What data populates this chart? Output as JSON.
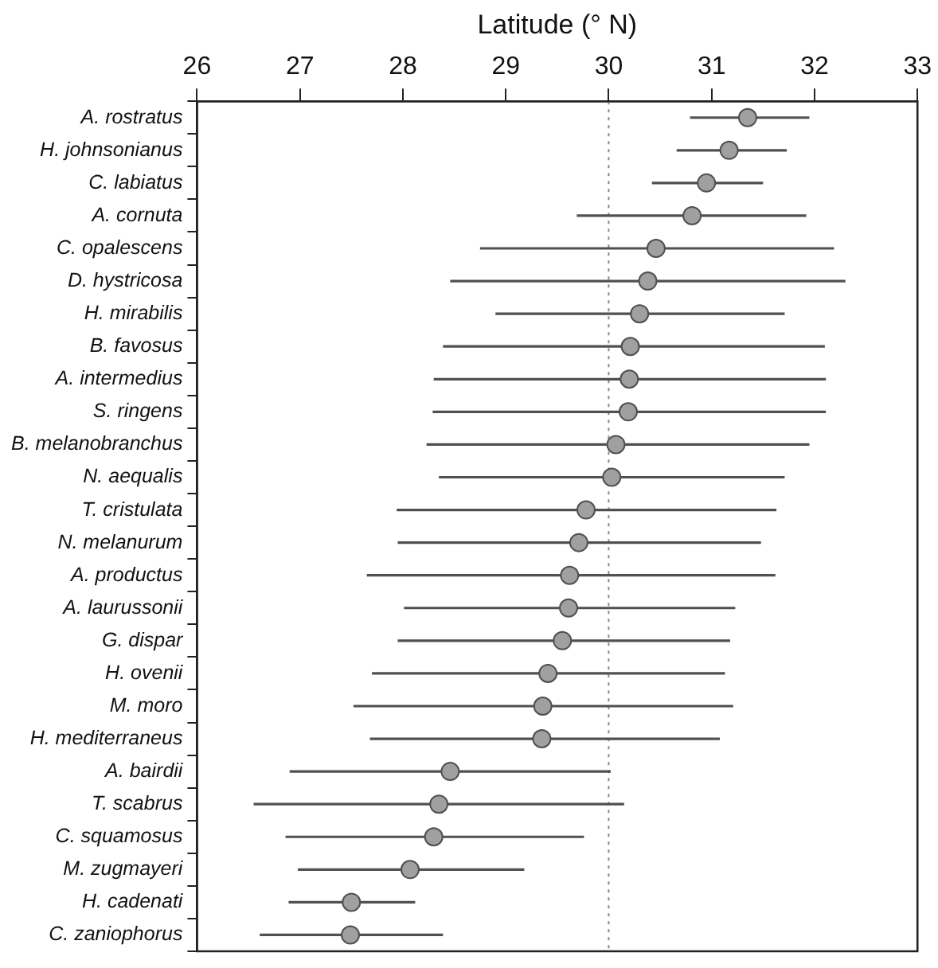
{
  "chart_data": {
    "type": "scatter",
    "orientation": "horizontal",
    "xlabel": "Latitude (° N)",
    "categories": [
      "A. rostratus",
      "H. johnsonianus",
      "C. labiatus",
      "A. cornuta",
      "C. opalescens",
      "D. hystricosa",
      "H. mirabilis",
      "B. favosus",
      "A. intermedius",
      "S. ringens",
      "B. melanobranchus",
      "N. aequalis",
      "T. cristulata",
      "N. melanurum",
      "A. productus",
      "A. laurussonii",
      "G. dispar",
      "H. ovenii",
      "M. moro",
      "H. mediterraneus",
      "A. bairdii",
      "T. scabrus",
      "C. squamosus",
      "M. zugmayeri",
      "H. cadenati",
      "C. zaniophorus"
    ],
    "series": [
      {
        "color": "#a0a0a0",
        "values": [
          31.35,
          31.17,
          30.95,
          30.81,
          30.46,
          30.38,
          30.3,
          30.21,
          30.2,
          30.19,
          30.07,
          30.03,
          29.78,
          29.71,
          29.62,
          29.61,
          29.55,
          29.41,
          29.36,
          29.35,
          28.46,
          28.35,
          28.3,
          28.07,
          27.5,
          27.49
        ],
        "errors": [
          [
            30.79,
            31.95
          ],
          [
            30.66,
            31.73
          ],
          [
            30.42,
            31.5
          ],
          [
            29.69,
            31.92
          ],
          [
            28.75,
            32.19
          ],
          [
            28.46,
            32.3
          ],
          [
            28.9,
            31.71
          ],
          [
            28.39,
            32.1
          ],
          [
            28.3,
            32.11
          ],
          [
            28.29,
            32.11
          ],
          [
            28.23,
            31.95
          ],
          [
            28.35,
            31.71
          ],
          [
            27.94,
            31.63
          ],
          [
            27.95,
            31.48
          ],
          [
            27.65,
            31.62
          ],
          [
            28.01,
            31.23
          ],
          [
            27.95,
            31.18
          ],
          [
            27.7,
            31.13
          ],
          [
            27.52,
            31.21
          ],
          [
            27.68,
            31.08
          ],
          [
            26.9,
            30.02
          ],
          [
            26.55,
            30.15
          ],
          [
            26.86,
            29.76
          ],
          [
            26.98,
            29.18
          ],
          [
            26.89,
            28.12
          ],
          [
            26.61,
            28.39
          ]
        ]
      }
    ],
    "xlim": [
      26,
      33
    ],
    "xticks": [
      26,
      27,
      28,
      29,
      30,
      31,
      32,
      33
    ],
    "ref_lines": [
      {
        "axis": "x",
        "value": 30,
        "line_style": "dotted",
        "color": "#888888"
      }
    ],
    "marker": "circle",
    "grid": false,
    "legend": false
  }
}
